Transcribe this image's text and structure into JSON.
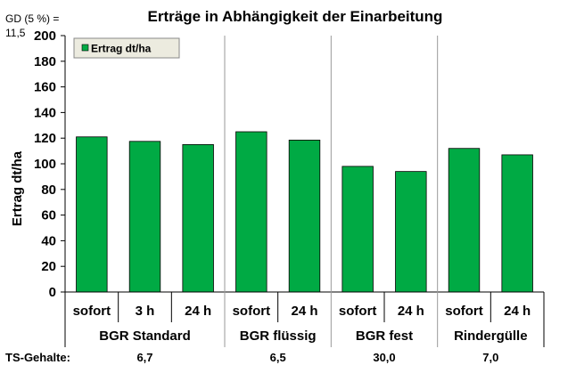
{
  "chart_data": {
    "type": "bar",
    "title": "Erträge in Abhängigkeit der Einarbeitung",
    "ylabel": "Ertrag dt/ha",
    "xlabel": "",
    "ylim": [
      0,
      200
    ],
    "yticks": [
      0,
      20,
      40,
      60,
      80,
      100,
      120,
      140,
      160,
      180,
      200
    ],
    "grid": false,
    "legend_position": "top-left",
    "significance_note": [
      "GD (5 %) =",
      "11,5"
    ],
    "groups": [
      {
        "name": "BGR Standard",
        "ts": "6,7",
        "categories": [
          "sofort",
          "3 h",
          "24 h"
        ]
      },
      {
        "name": "BGR flüssig",
        "ts": "6,5",
        "categories": [
          "sofort",
          "24 h"
        ]
      },
      {
        "name": "BGR fest",
        "ts": "30,0",
        "categories": [
          "sofort",
          "24 h"
        ]
      },
      {
        "name": "Rindergülle",
        "ts": "7,0",
        "categories": [
          "sofort",
          "24 h"
        ]
      }
    ],
    "ts_label": "TS-Gehalte:",
    "series": [
      {
        "name": "Ertrag dt/ha",
        "values": [
          121,
          117.5,
          115,
          125,
          118.5,
          98,
          94,
          112,
          107
        ]
      }
    ],
    "colors": {
      "bar": "#00aa44",
      "bar_border": "#000000",
      "legend_bg": "#ecebdf"
    }
  }
}
